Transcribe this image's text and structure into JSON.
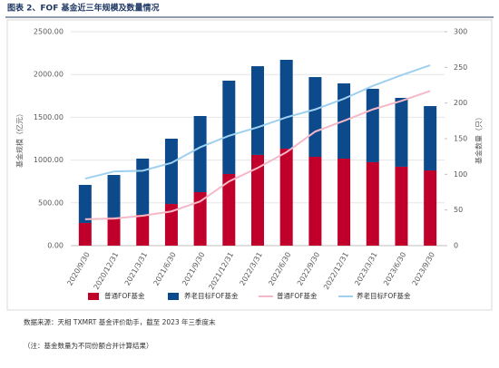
{
  "chart_data": {
    "type": "bar",
    "title": "图表 2、FOF 基金近三年规模及数量情况",
    "y_label": "基金规模（亿元）",
    "y2_label": "基金数量（只）",
    "categories": [
      "2020/9/30",
      "2020/12/31",
      "2021/3/31",
      "2021/6/30",
      "2021/9/30",
      "2021/12/31",
      "2022/3/31",
      "2022/6/30",
      "2022/9/30",
      "2022/12/31",
      "2023/3/31",
      "2023/6/30",
      "2023/9/30"
    ],
    "series": [
      {
        "name": "普通FOF基金",
        "type": "bar",
        "stack": true,
        "color": "#c0002b",
        "values": [
          265,
          330,
          360,
          487,
          625,
          837,
          1060,
          1133,
          1038,
          1017,
          975,
          922,
          879
        ]
      },
      {
        "name": "养老目标FOF基金",
        "type": "bar",
        "stack": true,
        "color": "#0d4a8c",
        "values": [
          445,
          496,
          657,
          763,
          890,
          1091,
          1037,
          1039,
          932,
          879,
          858,
          805,
          752
        ]
      },
      {
        "name": "普通FOF基金",
        "type": "line",
        "axis": "y2",
        "color": "#f5b8c8",
        "values": [
          37,
          38,
          42,
          48,
          62,
          90,
          109,
          131,
          160,
          175,
          191,
          203,
          217
        ]
      },
      {
        "name": "养老目标FOF基金",
        "type": "line",
        "axis": "y2",
        "color": "#9fd0f0",
        "values": [
          94,
          104,
          105,
          116,
          138,
          154,
          166,
          180,
          191,
          206,
          224,
          239,
          253
        ]
      }
    ],
    "ylim": [
      0,
      2500
    ],
    "yticks": [
      {
        "value": 0,
        "label": "0.00"
      },
      {
        "value": 500,
        "label": "500.00"
      },
      {
        "value": 1000,
        "label": "1000.00"
      },
      {
        "value": 1500,
        "label": "1500.00"
      },
      {
        "value": 2000,
        "label": "2000.00"
      },
      {
        "value": 2500,
        "label": "2500.00"
      }
    ],
    "y2lim": [
      0,
      300
    ],
    "y2ticks": [
      0,
      50,
      100,
      150,
      200,
      250,
      300
    ],
    "source": "数据来源：天相 TXMRT 基金评价助手，截至 2023 年三季度末",
    "note": "（注：基金数量为不同份额合并计算结果）"
  }
}
